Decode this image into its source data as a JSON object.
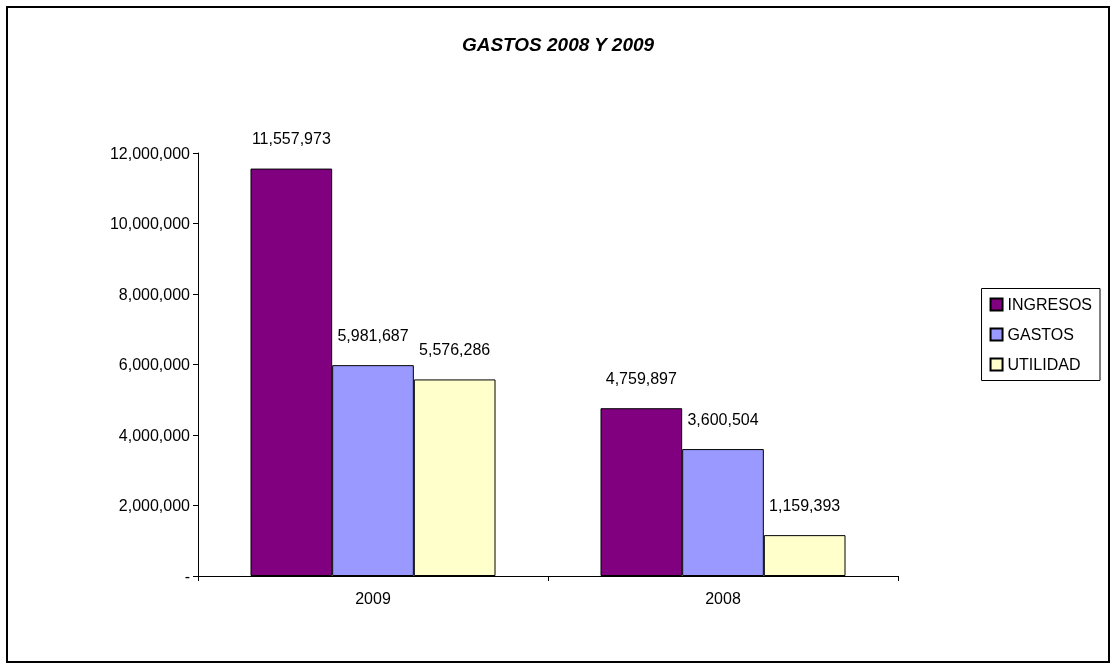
{
  "chart_data": {
    "type": "bar",
    "title": "GASTOS 2008 Y 2009",
    "categories": [
      "2009",
      "2008"
    ],
    "series": [
      {
        "name": "INGRESOS",
        "color": "#800080",
        "values": [
          11557973,
          4759897
        ],
        "value_labels": [
          "11,557,973",
          "4,759,897"
        ]
      },
      {
        "name": "GASTOS",
        "color": "#9999ff",
        "values": [
          5981687,
          3600504
        ],
        "value_labels": [
          "5,981,687",
          "3,600,504"
        ]
      },
      {
        "name": "UTILIDAD",
        "color": "#ffffcc",
        "values": [
          5576286,
          1159393
        ],
        "value_labels": [
          "5,576,286",
          "1,159,393"
        ]
      }
    ],
    "ylim": [
      0,
      12000000
    ],
    "yticks": [
      {
        "value": 0,
        "label": "-"
      },
      {
        "value": 2000000,
        "label": "2,000,000"
      },
      {
        "value": 4000000,
        "label": "4,000,000"
      },
      {
        "value": 6000000,
        "label": "6,000,000"
      },
      {
        "value": 8000000,
        "label": "8,000,000"
      },
      {
        "value": 10000000,
        "label": "10,000,000"
      },
      {
        "value": 12000000,
        "label": "12,000,000"
      }
    ],
    "grid": false,
    "legend": "right"
  }
}
